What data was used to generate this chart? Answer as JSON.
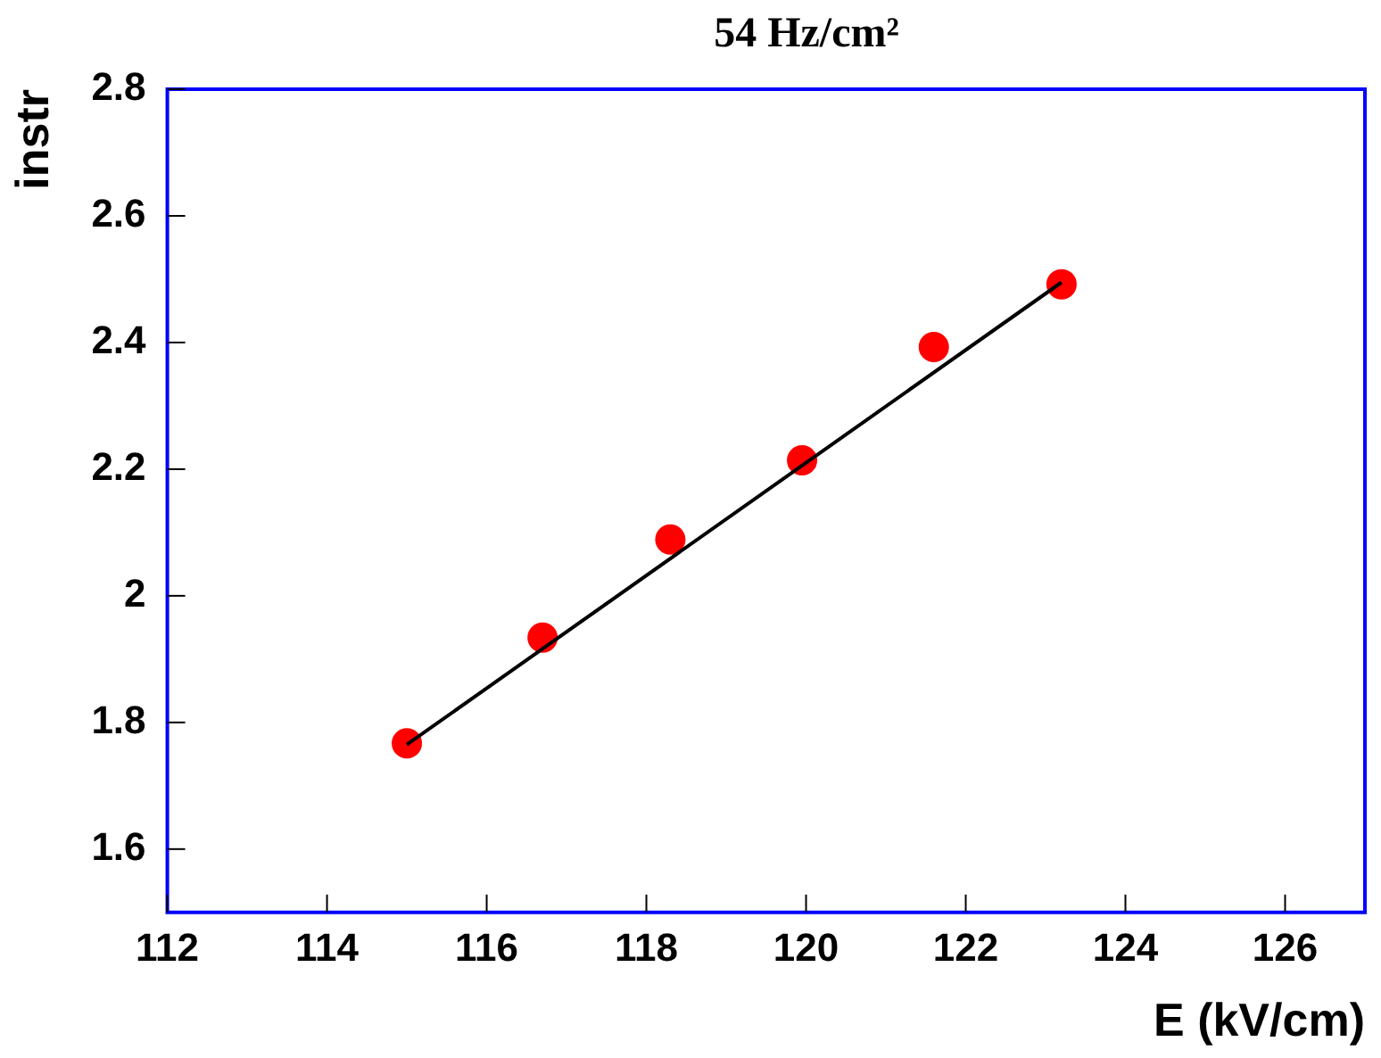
{
  "chart_data": {
    "type": "scatter",
    "title": "54 Hz/cm²",
    "xlabel": "E (kV/cm)",
    "ylabel": "instr",
    "x": [
      115,
      116.7,
      118.3,
      119.95,
      121.6,
      123.2
    ],
    "series": [
      {
        "type": "scatter",
        "color": "#ff0000",
        "values": [
          1.767,
          1.934,
          2.089,
          2.214,
          2.393,
          2.492
        ],
        "marker": "circle"
      },
      {
        "type": "line",
        "color": "#000000",
        "x": [
          115,
          123.2
        ],
        "values": [
          1.765,
          2.495
        ],
        "marker": "none"
      }
    ],
    "xlim": [
      112,
      127
    ],
    "xticks": [
      112,
      114,
      116,
      118,
      120,
      122,
      124,
      126
    ],
    "ylim": [
      1.5,
      2.8
    ],
    "yticks": [
      1.6,
      1.8,
      2,
      2.2,
      2.4,
      2.6,
      2.8
    ],
    "grid": false,
    "legend": false
  }
}
